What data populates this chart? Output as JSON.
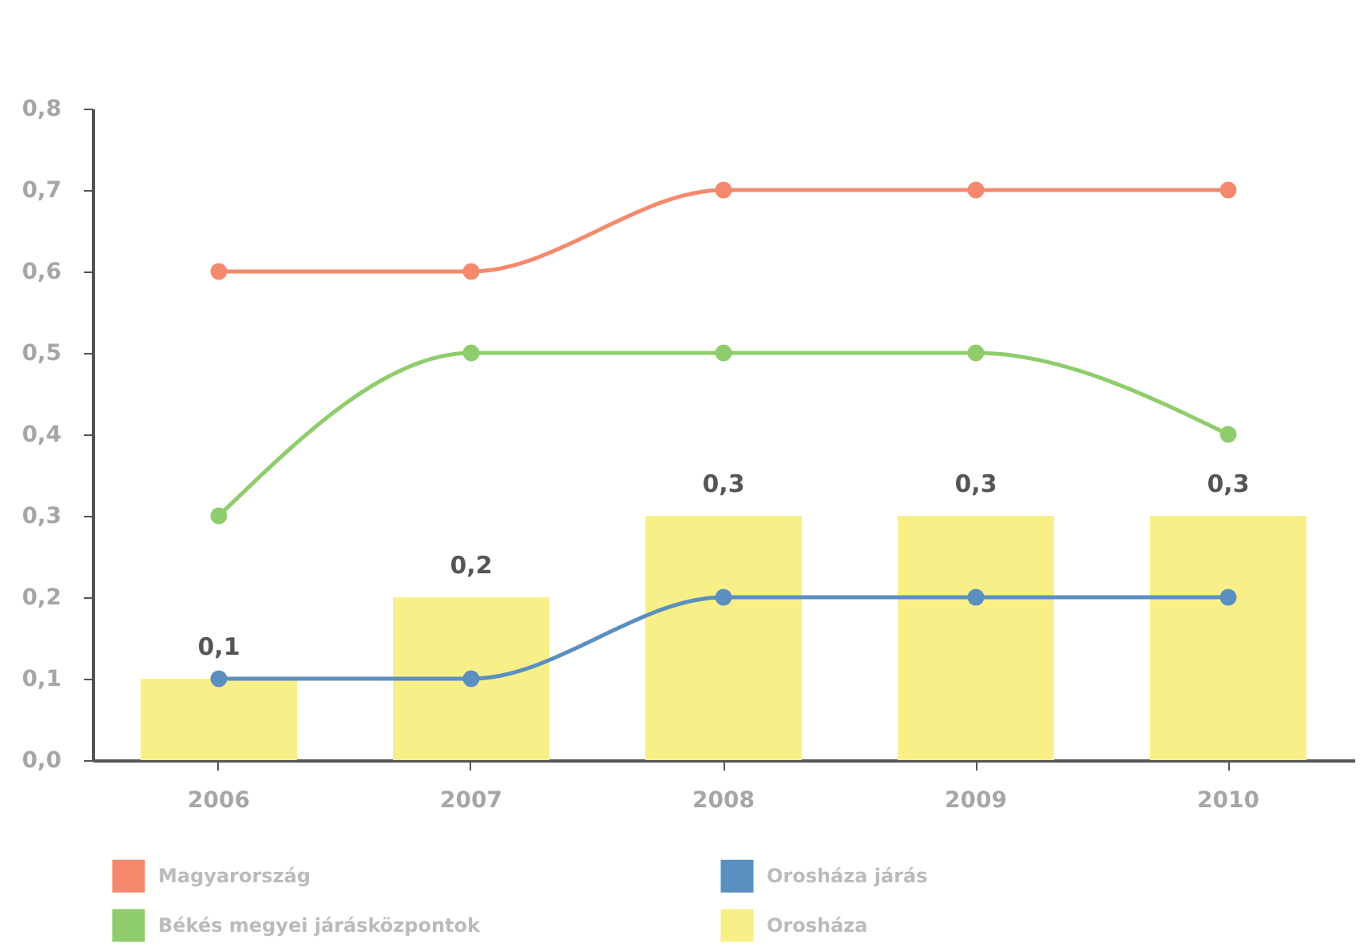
{
  "chart_data": {
    "type": "line",
    "categories": [
      "2006",
      "2007",
      "2008",
      "2009",
      "2010"
    ],
    "series": [
      {
        "name": "Magyarország",
        "color": "#f4896e",
        "values": [
          0.6,
          0.6,
          0.7,
          0.7,
          0.7
        ]
      },
      {
        "name": "Orosháza járás",
        "color": "#5b8fbf",
        "values": [
          0.1,
          0.1,
          0.2,
          0.2,
          0.2
        ]
      },
      {
        "name": "Békés megyei járásközpontok",
        "color": "#8fcc6c",
        "values": [
          0.3,
          0.5,
          0.5,
          0.5,
          0.4
        ]
      },
      {
        "name": "Orosháza",
        "type": "bar",
        "color": "#f9ef88",
        "values": [
          0.1,
          0.2,
          0.3,
          0.3,
          0.3
        ],
        "value_labels": [
          "0,1",
          "0,2",
          "0,3",
          "0,3",
          "0,3"
        ]
      }
    ],
    "ylim": [
      0,
      0.8
    ],
    "yticks": [
      {
        "value": 0,
        "label": "0,0"
      },
      {
        "value": 0.1,
        "label": "0,1"
      },
      {
        "value": 0.2,
        "label": "0,2"
      },
      {
        "value": 0.3,
        "label": "0,3"
      },
      {
        "value": 0.4,
        "label": "0,4"
      },
      {
        "value": 0.5,
        "label": "0,5"
      },
      {
        "value": 0.6,
        "label": "0,6"
      },
      {
        "value": 0.7,
        "label": "0,7"
      },
      {
        "value": 0.8,
        "label": "0,8"
      }
    ],
    "grid": false,
    "legend": "bottom",
    "marker": "circle",
    "line_style": "solid"
  }
}
